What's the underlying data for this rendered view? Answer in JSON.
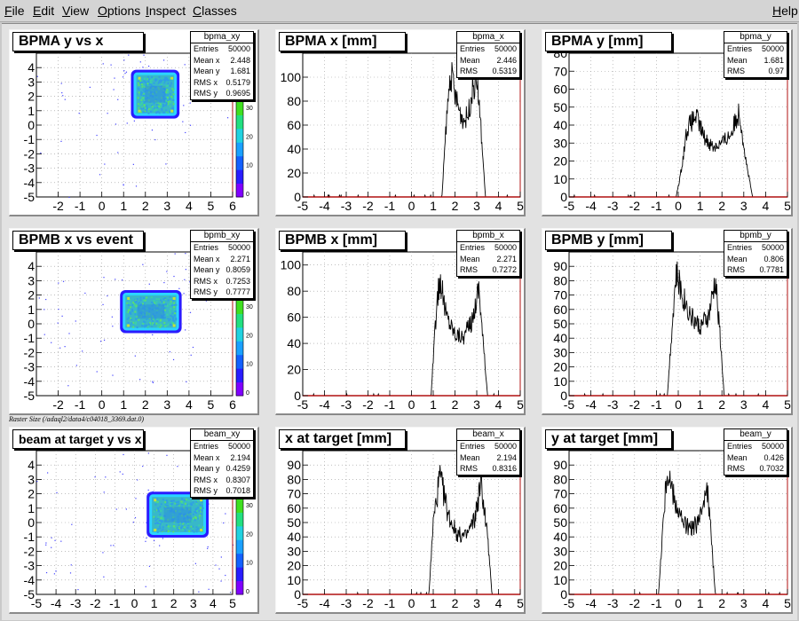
{
  "menu": {
    "items": [
      "File",
      "Edit",
      "View",
      "Options",
      "Inspect",
      "Classes"
    ],
    "help": "Help"
  },
  "caption": "Raster Size (/adaql2/data4/c04018_3369.dat.0)",
  "pads": [
    {
      "kind": "h2",
      "title": "BPMA y vs x",
      "stats_title": "bpma_xy",
      "stats": [
        [
          "Entries",
          "50000"
        ],
        [
          "Mean x",
          "2.448"
        ],
        [
          "Mean y",
          "1.681"
        ],
        [
          "RMS x",
          "0.5179"
        ],
        [
          "RMS y",
          "0.9695"
        ]
      ],
      "chart_data": {
        "type": "heatmap",
        "title": "BPMA y vs x",
        "xlim": [
          -3,
          6
        ],
        "ylim": [
          -5,
          5
        ],
        "xticks": [
          "-2",
          "-1",
          "0",
          "1",
          "2",
          "3",
          "4",
          "5",
          "6"
        ],
        "yticks": [
          "-5",
          "-4",
          "-3",
          "-2",
          "-1",
          "0",
          "1",
          "2",
          "3",
          "4"
        ],
        "block": {
          "x0": 1.5,
          "x1": 3.4,
          "y0": 0.7,
          "y1": 3.6
        },
        "zticks": [
          "0",
          "10",
          "20",
          "30"
        ]
      }
    },
    {
      "kind": "h1",
      "title": "BPMA x [mm]",
      "stats_title": "bpma_x",
      "stats": [
        [
          "Entries",
          "50000"
        ],
        [
          "Mean",
          "2.446"
        ],
        [
          "RMS",
          "0.5319"
        ]
      ],
      "chart_data": {
        "type": "line",
        "title": "BPMA x [mm]",
        "xlim": [
          -5,
          5
        ],
        "ylim": [
          0,
          120
        ],
        "xticks": [
          "-5",
          "-4",
          "-3",
          "-2",
          "-1",
          "0",
          "1",
          "2",
          "3",
          "4",
          "5"
        ],
        "yticks": [
          "0",
          "20",
          "40",
          "60",
          "80",
          "100"
        ],
        "x": [
          1.4,
          1.6,
          1.8,
          2.0,
          2.2,
          2.4,
          2.6,
          2.8,
          3.0,
          3.2,
          3.4
        ],
        "values": [
          0,
          62,
          105,
          85,
          72,
          64,
          68,
          90,
          100,
          55,
          0
        ]
      }
    },
    {
      "kind": "h1",
      "title": "BPMA y [mm]",
      "stats_title": "bpma_y",
      "stats": [
        [
          "Entries",
          "50000"
        ],
        [
          "Mean",
          "1.681"
        ],
        [
          "RMS",
          "0.97"
        ]
      ],
      "chart_data": {
        "type": "line",
        "title": "BPMA y [mm]",
        "xlim": [
          -5,
          5
        ],
        "ylim": [
          0,
          80
        ],
        "xticks": [
          "-5",
          "-4",
          "-3",
          "-2",
          "-1",
          "0",
          "1",
          "2",
          "3",
          "4",
          "5"
        ],
        "yticks": [
          "0",
          "10",
          "20",
          "30",
          "40",
          "50",
          "60",
          "70",
          "80"
        ],
        "x": [
          -0.1,
          0.1,
          0.4,
          0.8,
          1.2,
          1.6,
          2.0,
          2.4,
          2.8,
          3.1,
          3.4
        ],
        "values": [
          0,
          12,
          38,
          45,
          33,
          28,
          30,
          35,
          48,
          20,
          0
        ]
      }
    },
    {
      "kind": "h2",
      "title": "BPMB x vs event",
      "stats_title": "bpmb_xy",
      "stats": [
        [
          "Entries",
          "50000"
        ],
        [
          "Mean x",
          "2.271"
        ],
        [
          "Mean y",
          "0.8059"
        ],
        [
          "RMS x",
          "0.7253"
        ],
        [
          "RMS y",
          "0.7777"
        ]
      ],
      "chart_data": {
        "type": "heatmap",
        "title": "BPMB x vs event",
        "xlim": [
          -3,
          6
        ],
        "ylim": [
          -5,
          5
        ],
        "xticks": [
          "-2",
          "-1",
          "0",
          "1",
          "2",
          "3",
          "4",
          "5",
          "6"
        ],
        "yticks": [
          "-5",
          "-4",
          "-3",
          "-2",
          "-1",
          "0",
          "1",
          "2",
          "3",
          "4"
        ],
        "block": {
          "x0": 1.0,
          "x1": 3.5,
          "y0": -0.4,
          "y1": 2.1
        },
        "zticks": [
          "0",
          "10",
          "20",
          "30"
        ]
      }
    },
    {
      "kind": "h1",
      "title": "BPMB x [mm]",
      "stats_title": "bpmb_x",
      "stats": [
        [
          "Entries",
          "50000"
        ],
        [
          "Mean",
          "2.271"
        ],
        [
          "RMS",
          "0.7272"
        ]
      ],
      "chart_data": {
        "type": "line",
        "title": "BPMB x [mm]",
        "xlim": [
          -5,
          5
        ],
        "ylim": [
          0,
          110
        ],
        "xticks": [
          "-5",
          "-4",
          "-3",
          "-2",
          "-1",
          "0",
          "1",
          "2",
          "3",
          "4",
          "5"
        ],
        "yticks": [
          "0",
          "20",
          "40",
          "60",
          "80",
          "100"
        ],
        "x": [
          0.9,
          1.1,
          1.3,
          1.6,
          2.0,
          2.4,
          2.8,
          3.1,
          3.3,
          3.5
        ],
        "values": [
          0,
          55,
          90,
          62,
          48,
          45,
          58,
          85,
          40,
          0
        ]
      }
    },
    {
      "kind": "h1",
      "title": "BPMB y [mm]",
      "stats_title": "bpmb_y",
      "stats": [
        [
          "Entries",
          "50000"
        ],
        [
          "Mean",
          "0.806"
        ],
        [
          "RMS",
          "0.7781"
        ]
      ],
      "chart_data": {
        "type": "line",
        "title": "BPMB y [mm]",
        "xlim": [
          -5,
          5
        ],
        "ylim": [
          0,
          100
        ],
        "xticks": [
          "-5",
          "-4",
          "-3",
          "-2",
          "-1",
          "0",
          "1",
          "2",
          "3",
          "4",
          "5"
        ],
        "yticks": [
          "0",
          "10",
          "20",
          "30",
          "40",
          "50",
          "60",
          "70",
          "80",
          "90"
        ],
        "x": [
          -0.5,
          -0.3,
          -0.1,
          0.2,
          0.6,
          1.0,
          1.4,
          1.7,
          1.9,
          2.1
        ],
        "values": [
          0,
          45,
          85,
          70,
          55,
          48,
          55,
          80,
          45,
          0
        ]
      }
    },
    {
      "kind": "h2",
      "title": "beam at target y vs x",
      "stats_title": "beam_xy",
      "stats": [
        [
          "Entries",
          "50000"
        ],
        [
          "Mean x",
          "2.194"
        ],
        [
          "Mean y",
          "0.4259"
        ],
        [
          "RMS x",
          "0.8307"
        ],
        [
          "RMS y",
          "0.7018"
        ]
      ],
      "chart_data": {
        "type": "heatmap",
        "title": "beam at target y vs x",
        "xlim": [
          -5,
          5
        ],
        "ylim": [
          -5,
          5
        ],
        "xticks": [
          "-5",
          "-4",
          "-3",
          "-2",
          "-1",
          "0",
          "1",
          "2",
          "3",
          "4",
          "5"
        ],
        "yticks": [
          "-5",
          "-4",
          "-3",
          "-2",
          "-1",
          "0",
          "1",
          "2",
          "3",
          "4"
        ],
        "block": {
          "x0": 0.8,
          "x1": 3.6,
          "y0": -0.8,
          "y1": 1.9
        },
        "zticks": [
          "0",
          "10",
          "20",
          "30"
        ]
      }
    },
    {
      "kind": "h1",
      "title": "x at target [mm]",
      "stats_title": "beam_x",
      "stats": [
        [
          "Entries",
          "50000"
        ],
        [
          "Mean",
          "2.194"
        ],
        [
          "RMS",
          "0.8316"
        ]
      ],
      "chart_data": {
        "type": "line",
        "title": "x at target [mm]",
        "xlim": [
          -5,
          5
        ],
        "ylim": [
          0,
          100
        ],
        "xticks": [
          "-5",
          "-4",
          "-3",
          "-2",
          "-1",
          "0",
          "1",
          "2",
          "3",
          "4",
          "5"
        ],
        "yticks": [
          "0",
          "10",
          "20",
          "30",
          "40",
          "50",
          "60",
          "70",
          "80",
          "90"
        ],
        "x": [
          0.8,
          1.0,
          1.3,
          1.7,
          2.1,
          2.5,
          2.9,
          3.2,
          3.5,
          3.7
        ],
        "values": [
          0,
          50,
          82,
          55,
          42,
          40,
          52,
          78,
          40,
          0
        ]
      }
    },
    {
      "kind": "h1",
      "title": "y at target [mm]",
      "stats_title": "beam_y",
      "stats": [
        [
          "Entries",
          "50000"
        ],
        [
          "Mean",
          "0.426"
        ],
        [
          "RMS",
          "0.7032"
        ]
      ],
      "chart_data": {
        "type": "line",
        "title": "y at target [mm]",
        "xlim": [
          -5,
          5
        ],
        "ylim": [
          0,
          100
        ],
        "xticks": [
          "-5",
          "-4",
          "-3",
          "-2",
          "-1",
          "0",
          "1",
          "2",
          "3",
          "4",
          "5"
        ],
        "yticks": [
          "0",
          "10",
          "20",
          "30",
          "40",
          "50",
          "60",
          "70",
          "80",
          "90"
        ],
        "x": [
          -0.9,
          -0.7,
          -0.5,
          -0.2,
          0.2,
          0.6,
          1.0,
          1.3,
          1.5,
          1.7
        ],
        "values": [
          0,
          50,
          88,
          68,
          50,
          45,
          52,
          80,
          42,
          0
        ]
      }
    }
  ]
}
